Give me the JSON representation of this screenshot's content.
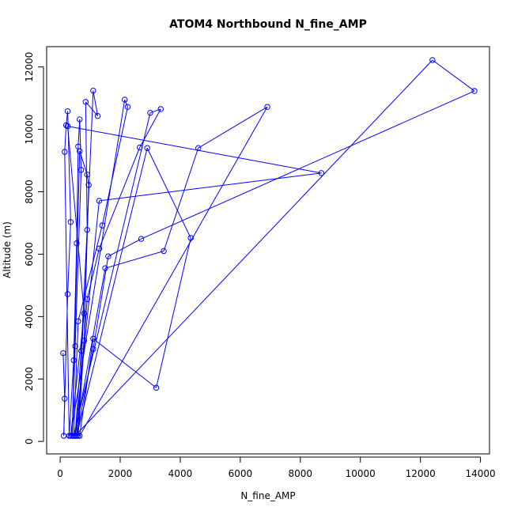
{
  "chart_data": {
    "type": "scatter",
    "title": "ATOM4 Northbound N_fine_AMP",
    "xlabel": "N_fine_AMP",
    "ylabel": "Altitude (m)",
    "xlim": [
      -450,
      14300
    ],
    "ylim": [
      -400,
      12650
    ],
    "xticks": [
      0,
      2000,
      4000,
      6000,
      8000,
      10000,
      12000,
      14000
    ],
    "yticks": [
      0,
      2000,
      4000,
      6000,
      8000,
      10000,
      12000
    ],
    "grid": false,
    "legend": "none",
    "connect_points": true,
    "point_style": "open-circle",
    "colors": {
      "series": "#0000ff",
      "axes": "#000000",
      "background": "#ffffff"
    },
    "series": [
      {
        "points": [
          [
            100,
            2830
          ],
          [
            150,
            1370
          ],
          [
            120,
            180
          ],
          [
            250,
            4720
          ],
          [
            350,
            7030
          ],
          [
            250,
            10580
          ],
          [
            200,
            10130
          ],
          [
            150,
            9280
          ],
          [
            300,
            180
          ],
          [
            450,
            2600
          ],
          [
            550,
            6350
          ],
          [
            600,
            9450
          ],
          [
            650,
            10320
          ],
          [
            700,
            8700
          ],
          [
            500,
            3050
          ],
          [
            400,
            180
          ],
          [
            650,
            9300
          ],
          [
            900,
            8550
          ],
          [
            950,
            8220
          ],
          [
            800,
            3230
          ],
          [
            600,
            180
          ],
          [
            1100,
            11240
          ],
          [
            1250,
            10430
          ],
          [
            850,
            10880
          ],
          [
            900,
            6780
          ],
          [
            700,
            2900
          ],
          [
            500,
            180
          ],
          [
            1300,
            7710
          ],
          [
            8700,
            8600
          ],
          [
            250,
            10100
          ],
          [
            800,
            4100
          ],
          [
            350,
            180
          ],
          [
            2150,
            10950
          ],
          [
            2250,
            10720
          ],
          [
            1400,
            6920
          ],
          [
            600,
            3850
          ],
          [
            450,
            180
          ],
          [
            3000,
            10530
          ],
          [
            3350,
            10650
          ],
          [
            2650,
            9420
          ],
          [
            1300,
            6180
          ],
          [
            900,
            4560
          ],
          [
            550,
            180
          ],
          [
            2900,
            9400
          ],
          [
            4350,
            6520
          ],
          [
            3200,
            1720
          ],
          [
            1100,
            3290
          ],
          [
            650,
            180
          ],
          [
            6900,
            10720
          ],
          [
            4600,
            9400
          ],
          [
            3450,
            6100
          ],
          [
            1500,
            5550
          ],
          [
            500,
            180
          ],
          [
            12400,
            12220
          ],
          [
            13800,
            11230
          ],
          [
            2700,
            6490
          ],
          [
            1600,
            5930
          ],
          [
            1100,
            2960
          ],
          [
            550,
            180
          ]
        ]
      }
    ]
  }
}
